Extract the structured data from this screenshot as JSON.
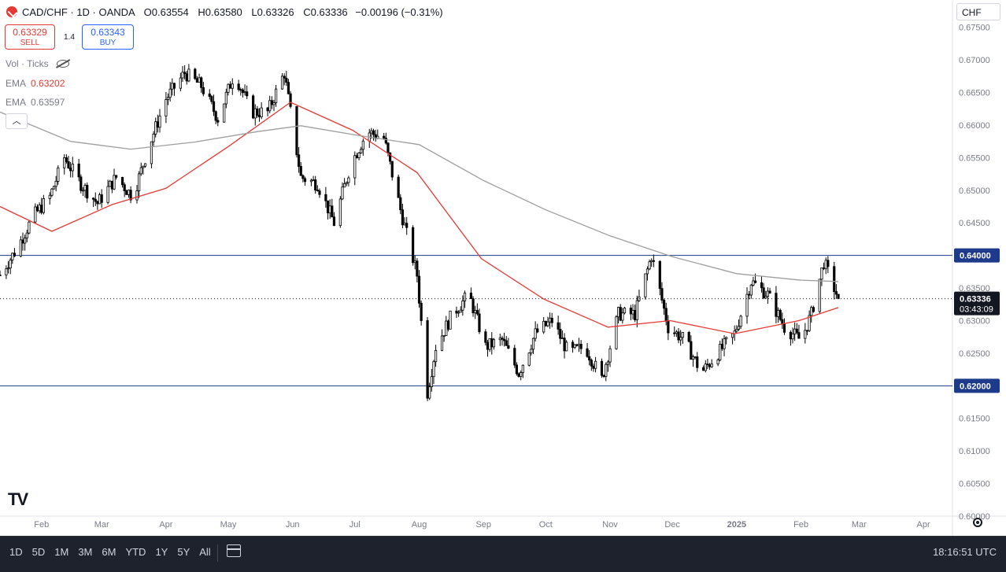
{
  "header": {
    "symbol": "CAD/CHF · 1D · OANDA",
    "open_label": "O",
    "open": "0.63554",
    "high_label": "H",
    "high": "0.63580",
    "low_label": "L",
    "low": "0.63326",
    "close_label": "C",
    "close": "0.63336",
    "change": "−0.00196 (−0.31%)"
  },
  "trade": {
    "sell_price": "0.63329",
    "sell_label": "SELL",
    "spread": "1.4",
    "buy_price": "0.63343",
    "buy_label": "BUY"
  },
  "indicators": {
    "vol_label": "Vol · Ticks",
    "ema1_label": "EMA",
    "ema1_value": "0.63202",
    "ema2_label": "EMA",
    "ema2_value": "0.63597"
  },
  "currency": "CHF",
  "bottom_bar": {
    "ranges": [
      "1D",
      "5D",
      "1M",
      "3M",
      "6M",
      "YTD",
      "1Y",
      "5Y",
      "All"
    ],
    "time": "18:16:51 UTC"
  },
  "colors": {
    "up_candle": "#ffffff",
    "down_candle": "#000000",
    "ema_short": "#e53935",
    "ema_long": "#9e9e9e",
    "hline": "#1e3a8a",
    "price_tag": "#131722"
  },
  "chart_data": {
    "type": "candlestick",
    "y_axis": {
      "min": 0.6,
      "max": 0.6775,
      "ticks": [
        "0.67500",
        "0.67000",
        "0.66500",
        "0.66000",
        "0.65500",
        "0.65000",
        "0.64500",
        "0.64000",
        "0.63500",
        "0.63000",
        "0.62500",
        "0.62000",
        "0.61500",
        "0.61000",
        "0.60500",
        "0.60000"
      ]
    },
    "x_labels": [
      "Feb",
      "Mar",
      "Apr",
      "May",
      "Jun",
      "Jul",
      "Aug",
      "Sep",
      "Oct",
      "Nov",
      "Dec",
      "2025",
      "Feb",
      "Mar",
      "Apr"
    ],
    "x_label_dates": [
      "2024-02-01",
      "2024-03-01",
      "2024-04-01",
      "2024-05-01",
      "2024-06-01",
      "2024-07-01",
      "2024-08-01",
      "2024-09-01",
      "2024-10-01",
      "2024-11-01",
      "2024-12-01",
      "2025-01-01",
      "2025-02-01",
      "2025-03-01",
      "2025-04-01"
    ],
    "date_range": [
      "2024-01-12",
      "2025-04-15"
    ],
    "last_bar_date": "2025-02-19",
    "horizontal_lines": [
      {
        "value": 0.64,
        "label": "0.64000"
      },
      {
        "value": 0.62,
        "label": "0.62000"
      }
    ],
    "current_price": {
      "value": 0.63336,
      "label": "0.63336",
      "countdown": "03:43:09"
    },
    "price_path": [
      {
        "date": "2024-01-12",
        "value": 0.637
      },
      {
        "date": "2024-01-20",
        "value": 0.641
      },
      {
        "date": "2024-01-28",
        "value": 0.646
      },
      {
        "date": "2024-02-05",
        "value": 0.649
      },
      {
        "date": "2024-02-12",
        "value": 0.655
      },
      {
        "date": "2024-02-20",
        "value": 0.651
      },
      {
        "date": "2024-02-28",
        "value": 0.648
      },
      {
        "date": "2024-03-08",
        "value": 0.652
      },
      {
        "date": "2024-03-16",
        "value": 0.649
      },
      {
        "date": "2024-03-24",
        "value": 0.657
      },
      {
        "date": "2024-04-01",
        "value": 0.664
      },
      {
        "date": "2024-04-10",
        "value": 0.668
      },
      {
        "date": "2024-04-18",
        "value": 0.666
      },
      {
        "date": "2024-04-26",
        "value": 0.661
      },
      {
        "date": "2024-05-04",
        "value": 0.668
      },
      {
        "date": "2024-05-12",
        "value": 0.662
      },
      {
        "date": "2024-05-20",
        "value": 0.662
      },
      {
        "date": "2024-05-28",
        "value": 0.668
      },
      {
        "date": "2024-06-05",
        "value": 0.652
      },
      {
        "date": "2024-06-13",
        "value": 0.651
      },
      {
        "date": "2024-06-21",
        "value": 0.645
      },
      {
        "date": "2024-06-29",
        "value": 0.654
      },
      {
        "date": "2024-07-07",
        "value": 0.659
      },
      {
        "date": "2024-07-15",
        "value": 0.658
      },
      {
        "date": "2024-07-23",
        "value": 0.647
      },
      {
        "date": "2024-07-31",
        "value": 0.637
      },
      {
        "date": "2024-08-05",
        "value": 0.619
      },
      {
        "date": "2024-08-09",
        "value": 0.626
      },
      {
        "date": "2024-08-17",
        "value": 0.631
      },
      {
        "date": "2024-08-25",
        "value": 0.634
      },
      {
        "date": "2024-09-02",
        "value": 0.626
      },
      {
        "date": "2024-09-10",
        "value": 0.627
      },
      {
        "date": "2024-09-18",
        "value": 0.622
      },
      {
        "date": "2024-09-26",
        "value": 0.628
      },
      {
        "date": "2024-10-04",
        "value": 0.63
      },
      {
        "date": "2024-10-12",
        "value": 0.625
      },
      {
        "date": "2024-10-20",
        "value": 0.626
      },
      {
        "date": "2024-10-28",
        "value": 0.621
      },
      {
        "date": "2024-11-05",
        "value": 0.631
      },
      {
        "date": "2024-11-13",
        "value": 0.631
      },
      {
        "date": "2024-11-21",
        "value": 0.64
      },
      {
        "date": "2024-11-29",
        "value": 0.629
      },
      {
        "date": "2024-12-07",
        "value": 0.627
      },
      {
        "date": "2024-12-15",
        "value": 0.622
      },
      {
        "date": "2024-12-23",
        "value": 0.625
      },
      {
        "date": "2024-12-31",
        "value": 0.628
      },
      {
        "date": "2025-01-08",
        "value": 0.636
      },
      {
        "date": "2025-01-16",
        "value": 0.634
      },
      {
        "date": "2025-01-24",
        "value": 0.629
      },
      {
        "date": "2025-02-01",
        "value": 0.627
      },
      {
        "date": "2025-02-06",
        "value": 0.631
      },
      {
        "date": "2025-02-12",
        "value": 0.639
      },
      {
        "date": "2025-02-19",
        "value": 0.6334
      }
    ],
    "series": [
      {
        "name": "EMA",
        "value": 0.63202,
        "points": [
          {
            "date": "2024-01-12",
            "value": 0.6475
          },
          {
            "date": "2024-02-06",
            "value": 0.6437
          },
          {
            "date": "2024-03-06",
            "value": 0.6478
          },
          {
            "date": "2024-04-01",
            "value": 0.6503
          },
          {
            "date": "2024-05-01",
            "value": 0.6567
          },
          {
            "date": "2024-05-31",
            "value": 0.6635
          },
          {
            "date": "2024-06-30",
            "value": 0.6592
          },
          {
            "date": "2024-07-31",
            "value": 0.6527
          },
          {
            "date": "2024-08-31",
            "value": 0.6395
          },
          {
            "date": "2024-09-30",
            "value": 0.6333
          },
          {
            "date": "2024-10-31",
            "value": 0.629
          },
          {
            "date": "2024-11-30",
            "value": 0.63
          },
          {
            "date": "2024-12-31",
            "value": 0.628
          },
          {
            "date": "2025-01-31",
            "value": 0.63
          },
          {
            "date": "2025-02-19",
            "value": 0.632
          }
        ]
      },
      {
        "name": "EMA",
        "value": 0.63597,
        "points": [
          {
            "date": "2024-01-12",
            "value": 0.662
          },
          {
            "date": "2024-02-15",
            "value": 0.6575
          },
          {
            "date": "2024-03-15",
            "value": 0.6563
          },
          {
            "date": "2024-04-15",
            "value": 0.6574
          },
          {
            "date": "2024-05-15",
            "value": 0.659
          },
          {
            "date": "2024-06-05",
            "value": 0.6599
          },
          {
            "date": "2024-07-01",
            "value": 0.6585
          },
          {
            "date": "2024-08-01",
            "value": 0.657
          },
          {
            "date": "2024-09-01",
            "value": 0.6515
          },
          {
            "date": "2024-10-01",
            "value": 0.647
          },
          {
            "date": "2024-11-01",
            "value": 0.643
          },
          {
            "date": "2024-12-01",
            "value": 0.6398
          },
          {
            "date": "2025-01-01",
            "value": 0.6372
          },
          {
            "date": "2025-02-01",
            "value": 0.6362
          },
          {
            "date": "2025-02-19",
            "value": 0.636
          }
        ]
      }
    ]
  }
}
